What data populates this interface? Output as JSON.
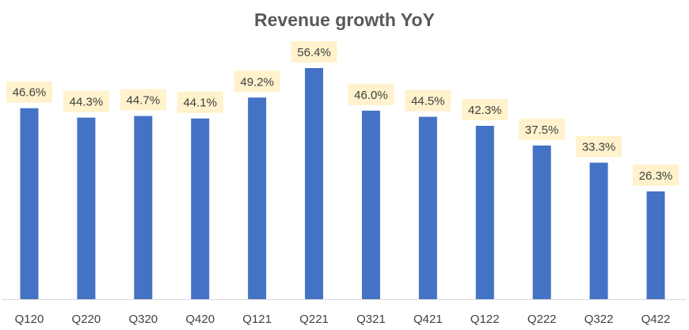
{
  "chart_data": {
    "type": "bar",
    "title": "Revenue growth YoY",
    "xlabel": "",
    "ylabel": "",
    "categories": [
      "Q120",
      "Q220",
      "Q320",
      "Q420",
      "Q121",
      "Q221",
      "Q321",
      "Q421",
      "Q122",
      "Q222",
      "Q322",
      "Q422"
    ],
    "values": [
      46.6,
      44.3,
      44.7,
      44.1,
      49.2,
      56.4,
      46.0,
      44.5,
      42.3,
      37.5,
      33.3,
      26.3
    ],
    "data_labels": [
      "46.6%",
      "44.3%",
      "44.7%",
      "44.1%",
      "49.2%",
      "56.4%",
      "46.0%",
      "44.5%",
      "42.3%",
      "37.5%",
      "33.3%",
      "26.3%"
    ],
    "ylim": [
      0,
      60
    ],
    "grid": false,
    "y_axis_visible": false,
    "legend": "none",
    "colors": {
      "bar": "#4472C4",
      "label_background": "#FFF2CC",
      "label_text": "#404040",
      "axis": "#D9D9D9",
      "title": "#595959"
    }
  }
}
